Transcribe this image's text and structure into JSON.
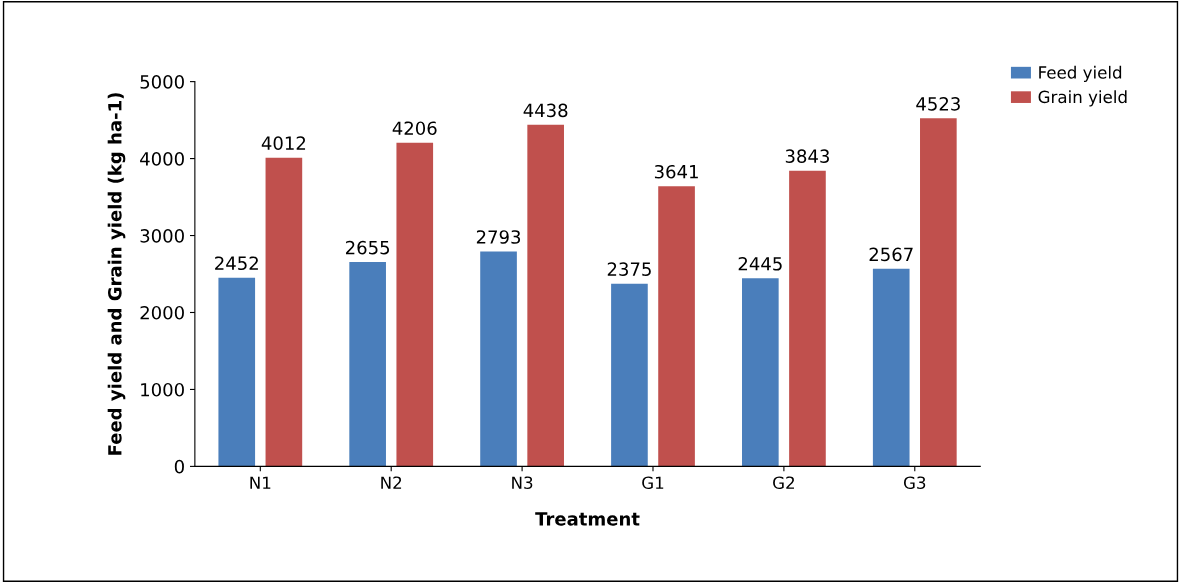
{
  "chart_data": {
    "type": "bar",
    "xlabel": "Treatment",
    "ylabel": "Feed yield and Grain yield (kg ha-1)",
    "categories": [
      "N1",
      "N2",
      "N3",
      "G1",
      "G2",
      "G3"
    ],
    "series": [
      {
        "name": "Feed yield",
        "color": "#4a7ebb",
        "values": [
          2452,
          2655,
          2793,
          2375,
          2445,
          2567
        ]
      },
      {
        "name": "Grain yield",
        "color": "#c0504d",
        "values": [
          4012,
          4206,
          4438,
          3641,
          3843,
          4523
        ]
      }
    ],
    "ylim": [
      0,
      5000
    ],
    "yticks": [
      0,
      1000,
      2000,
      3000,
      4000,
      5000
    ],
    "grid": false,
    "legend": "top right",
    "data_labels": true
  }
}
